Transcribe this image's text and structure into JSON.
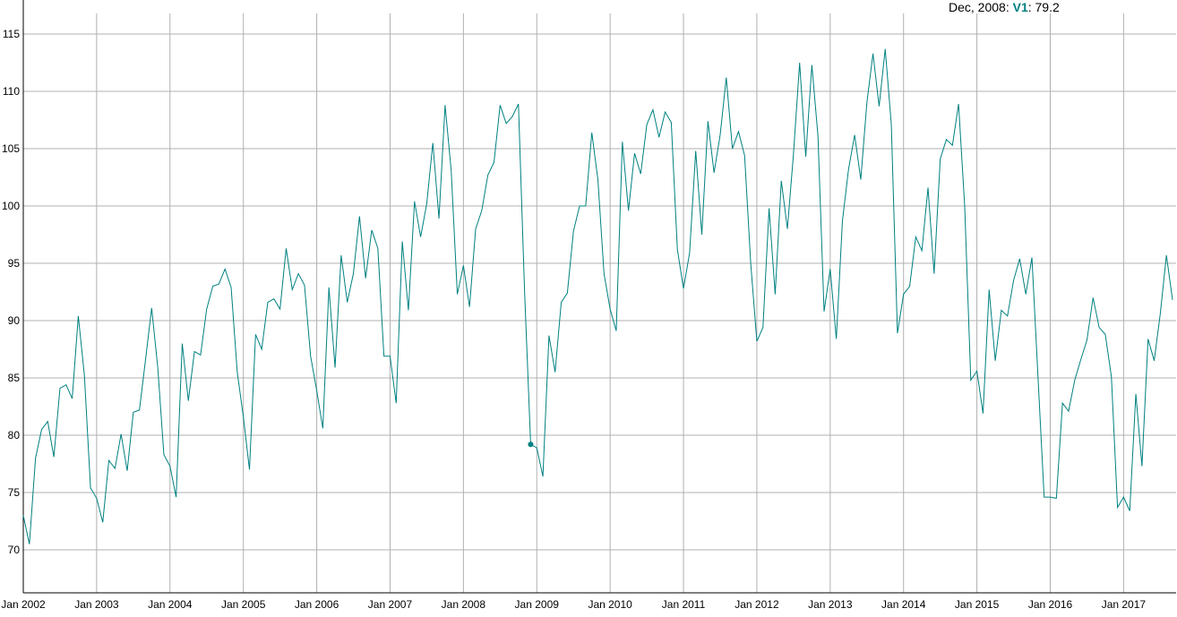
{
  "chart_data": {
    "type": "line",
    "x": [
      "2002-01",
      "2002-02",
      "2002-03",
      "2002-04",
      "2002-05",
      "2002-06",
      "2002-07",
      "2002-08",
      "2002-09",
      "2002-10",
      "2002-11",
      "2002-12",
      "2003-01",
      "2003-02",
      "2003-03",
      "2003-04",
      "2003-05",
      "2003-06",
      "2003-07",
      "2003-08",
      "2003-09",
      "2003-10",
      "2003-11",
      "2003-12",
      "2004-01",
      "2004-02",
      "2004-03",
      "2004-04",
      "2004-05",
      "2004-06",
      "2004-07",
      "2004-08",
      "2004-09",
      "2004-10",
      "2004-11",
      "2004-12",
      "2005-01",
      "2005-02",
      "2005-03",
      "2005-04",
      "2005-05",
      "2005-06",
      "2005-07",
      "2005-08",
      "2005-09",
      "2005-10",
      "2005-11",
      "2005-12",
      "2006-01",
      "2006-02",
      "2006-03",
      "2006-04",
      "2006-05",
      "2006-06",
      "2006-07",
      "2006-08",
      "2006-09",
      "2006-10",
      "2006-11",
      "2006-12",
      "2007-01",
      "2007-02",
      "2007-03",
      "2007-04",
      "2007-05",
      "2007-06",
      "2007-07",
      "2007-08",
      "2007-09",
      "2007-10",
      "2007-11",
      "2007-12",
      "2008-01",
      "2008-02",
      "2008-03",
      "2008-04",
      "2008-05",
      "2008-06",
      "2008-07",
      "2008-08",
      "2008-09",
      "2008-10",
      "2008-11",
      "2008-12",
      "2009-01",
      "2009-02",
      "2009-03",
      "2009-04",
      "2009-05",
      "2009-06",
      "2009-07",
      "2009-08",
      "2009-09",
      "2009-10",
      "2009-11",
      "2009-12",
      "2010-01",
      "2010-02",
      "2010-03",
      "2010-04",
      "2010-05",
      "2010-06",
      "2010-07",
      "2010-08",
      "2010-09",
      "2010-10",
      "2010-11",
      "2010-12",
      "2011-01",
      "2011-02",
      "2011-03",
      "2011-04",
      "2011-05",
      "2011-06",
      "2011-07",
      "2011-08",
      "2011-09",
      "2011-10",
      "2011-11",
      "2011-12",
      "2012-01",
      "2012-02",
      "2012-03",
      "2012-04",
      "2012-05",
      "2012-06",
      "2012-07",
      "2012-08",
      "2012-09",
      "2012-10",
      "2012-11",
      "2012-12",
      "2013-01",
      "2013-02",
      "2013-03",
      "2013-04",
      "2013-05",
      "2013-06",
      "2013-07",
      "2013-08",
      "2013-09",
      "2013-10",
      "2013-11",
      "2013-12",
      "2014-01",
      "2014-02",
      "2014-03",
      "2014-04",
      "2014-05",
      "2014-06",
      "2014-07",
      "2014-08",
      "2014-09",
      "2014-10",
      "2014-11",
      "2014-12",
      "2015-01",
      "2015-02",
      "2015-03",
      "2015-04",
      "2015-05",
      "2015-06",
      "2015-07",
      "2015-08",
      "2015-09",
      "2015-10",
      "2015-11",
      "2015-12",
      "2016-01",
      "2016-02",
      "2016-03",
      "2016-04",
      "2016-05",
      "2016-06",
      "2016-07",
      "2016-08",
      "2016-09",
      "2016-10",
      "2016-11",
      "2016-12",
      "2017-01",
      "2017-02",
      "2017-03",
      "2017-04",
      "2017-05",
      "2017-06",
      "2017-07",
      "2017-08",
      "2017-09"
    ],
    "series": [
      {
        "name": "V1",
        "color": "#008080",
        "values": [
          73.0,
          70.5,
          78.0,
          80.5,
          81.2,
          78.1,
          84.1,
          84.4,
          83.2,
          90.4,
          85.2,
          75.4,
          74.5,
          72.4,
          77.8,
          77.1,
          80.1,
          76.9,
          82.0,
          82.2,
          86.6,
          91.1,
          85.9,
          78.3,
          77.3,
          74.6,
          88.0,
          83.0,
          87.3,
          87.0,
          91.0,
          93.0,
          93.2,
          94.5,
          92.9,
          85.5,
          81.6,
          77.0,
          88.8,
          87.5,
          91.6,
          91.9,
          91.0,
          96.3,
          92.7,
          94.1,
          93.1,
          86.9,
          83.9,
          80.6,
          92.9,
          85.9,
          95.7,
          91.6,
          94.1,
          99.1,
          93.7,
          97.9,
          96.3,
          86.9,
          86.9,
          82.8,
          96.9,
          90.9,
          100.4,
          97.3,
          100.2,
          105.5,
          98.9,
          108.8,
          103.1,
          92.3,
          94.8,
          91.2,
          98.0,
          99.6,
          102.7,
          103.8,
          108.8,
          107.2,
          107.8,
          108.9,
          92.6,
          79.2,
          78.9,
          76.4,
          88.7,
          85.5,
          91.6,
          92.4,
          97.8,
          100.0,
          100.0,
          106.4,
          102.3,
          94.1,
          91.0,
          89.1,
          105.6,
          99.6,
          104.6,
          102.8,
          107.1,
          108.4,
          106.0,
          108.2,
          107.3,
          96.2,
          92.8,
          95.9,
          104.8,
          97.5,
          107.4,
          102.9,
          106.2,
          111.2,
          105.0,
          106.5,
          104.4,
          95.0,
          88.2,
          89.4,
          99.8,
          92.3,
          102.2,
          98.0,
          104.6,
          112.5,
          104.3,
          112.3,
          106.1,
          90.8,
          94.5,
          88.4,
          98.7,
          103.2,
          106.2,
          102.3,
          109.0,
          113.3,
          108.7,
          113.7,
          107.1,
          88.9,
          92.3,
          93.0,
          97.3,
          96.1,
          101.6,
          94.1,
          104.1,
          105.8,
          105.3,
          108.9,
          100.0,
          84.8,
          85.6,
          81.9,
          92.7,
          86.5,
          90.9,
          90.4,
          93.5,
          95.4,
          92.3,
          95.5,
          85.0,
          74.6,
          74.6,
          74.5,
          82.8,
          82.1,
          84.8,
          86.6,
          88.3,
          92.0,
          89.4,
          88.8,
          85.1,
          73.7,
          74.6,
          73.4,
          83.6,
          77.3,
          88.4,
          86.5,
          90.6,
          95.7,
          91.8
        ]
      }
    ],
    "xlim": [
      "2002-01",
      "2017-09"
    ],
    "xticks": [
      {
        "value": "2002-01",
        "label": "Jan 2002"
      },
      {
        "value": "2003-01",
        "label": "Jan 2003"
      },
      {
        "value": "2004-01",
        "label": "Jan 2004"
      },
      {
        "value": "2005-01",
        "label": "Jan 2005"
      },
      {
        "value": "2006-01",
        "label": "Jan 2006"
      },
      {
        "value": "2007-01",
        "label": "Jan 2007"
      },
      {
        "value": "2008-01",
        "label": "Jan 2008"
      },
      {
        "value": "2009-01",
        "label": "Jan 2009"
      },
      {
        "value": "2010-01",
        "label": "Jan 2010"
      },
      {
        "value": "2011-01",
        "label": "Jan 2011"
      },
      {
        "value": "2012-01",
        "label": "Jan 2012"
      },
      {
        "value": "2013-01",
        "label": "Jan 2013"
      },
      {
        "value": "2014-01",
        "label": "Jan 2014"
      },
      {
        "value": "2015-01",
        "label": "Jan 2015"
      },
      {
        "value": "2016-01",
        "label": "Jan 2016"
      },
      {
        "value": "2017-01",
        "label": "Jan 2017"
      }
    ],
    "ylim": [
      66.25,
      116.8
    ],
    "yticks": [
      70,
      75,
      80,
      85,
      90,
      95,
      100,
      105,
      110,
      115
    ],
    "grid": true,
    "highlight": {
      "x": "2008-12",
      "label": "Dec, 2008:",
      "value_label": ": 79.2"
    }
  }
}
